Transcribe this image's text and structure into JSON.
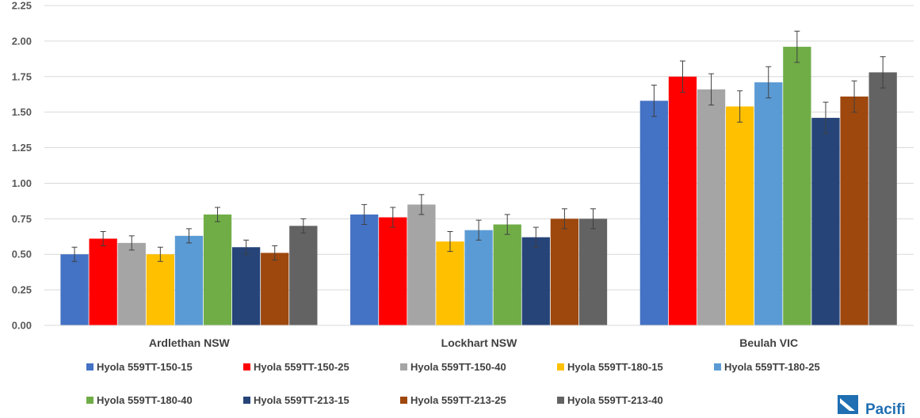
{
  "chart_data": {
    "type": "bar",
    "title": "",
    "xlabel": "",
    "ylabel": "",
    "ylim": [
      0,
      2.25
    ],
    "yticks": [
      "0.00",
      "0.25",
      "0.50",
      "0.75",
      "1.00",
      "1.25",
      "1.50",
      "1.75",
      "2.00",
      "2.25"
    ],
    "grid": true,
    "legend_position": "bottom",
    "categories": [
      "Ardlethan NSW",
      "Lockhart NSW",
      "Beulah VIC"
    ],
    "series": [
      {
        "name": "Hyola 559TT-150-15",
        "color": "#4472c4",
        "values": [
          0.5,
          0.78,
          1.58
        ],
        "errors": [
          0.05,
          0.07,
          0.11
        ]
      },
      {
        "name": "Hyola 559TT-150-25",
        "color": "#ff0000",
        "values": [
          0.61,
          0.76,
          1.75
        ],
        "errors": [
          0.05,
          0.07,
          0.11
        ]
      },
      {
        "name": "Hyola 559TT-150-40",
        "color": "#a5a5a5",
        "values": [
          0.58,
          0.85,
          1.66
        ],
        "errors": [
          0.05,
          0.07,
          0.11
        ]
      },
      {
        "name": "Hyola 559TT-180-15",
        "color": "#ffc000",
        "values": [
          0.5,
          0.59,
          1.54
        ],
        "errors": [
          0.05,
          0.07,
          0.11
        ]
      },
      {
        "name": "Hyola 559TT-180-25",
        "color": "#5b9bd5",
        "values": [
          0.63,
          0.67,
          1.71
        ],
        "errors": [
          0.05,
          0.07,
          0.11
        ]
      },
      {
        "name": "Hyola 559TT-180-40",
        "color": "#70ad47",
        "values": [
          0.78,
          0.71,
          1.96
        ],
        "errors": [
          0.05,
          0.07,
          0.11
        ]
      },
      {
        "name": "Hyola 559TT-213-15",
        "color": "#264478",
        "values": [
          0.55,
          0.62,
          1.46
        ],
        "errors": [
          0.05,
          0.07,
          0.11
        ]
      },
      {
        "name": "Hyola 559TT-213-25",
        "color": "#9e480e",
        "values": [
          0.51,
          0.75,
          1.61
        ],
        "errors": [
          0.05,
          0.07,
          0.11
        ]
      },
      {
        "name": "Hyola 559TT-213-40",
        "color": "#636363",
        "values": [
          0.7,
          0.75,
          1.78
        ],
        "errors": [
          0.05,
          0.07,
          0.11
        ]
      }
    ]
  },
  "logo": {
    "text": "Pacifi"
  }
}
